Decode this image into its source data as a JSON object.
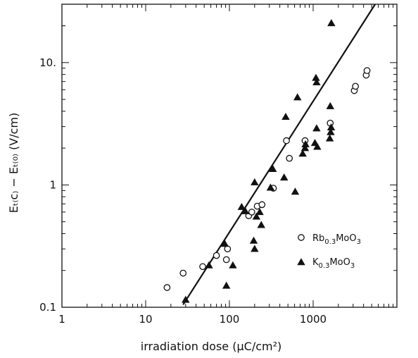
{
  "chart_data": {
    "type": "scatter",
    "xlabel": "irradiation dose (μC/cm²)",
    "ylabel": "Eₜ₍c₎ − Eₜ₍₀₎ (V/cm)",
    "xscale": "log",
    "yscale": "log",
    "xlim": [
      1,
      10000
    ],
    "ylim": [
      0.1,
      30
    ],
    "x_ticks": [
      1,
      10,
      100,
      1000
    ],
    "x_tick_labels": [
      "1",
      "10",
      "100",
      "1000"
    ],
    "y_ticks": [
      0.1,
      1,
      10
    ],
    "y_tick_labels": [
      "0.1",
      "1",
      "10."
    ],
    "grid": false,
    "legend_position": "right",
    "series": [
      {
        "name": "Rb0.3MoO3",
        "name_main": "Rb",
        "name_sub": "0.3",
        "name_rest": "MoO",
        "name_sub2": "3",
        "marker": "open-circle",
        "color": "#111111",
        "points": [
          [
            18,
            0.145
          ],
          [
            28,
            0.19
          ],
          [
            48,
            0.215
          ],
          [
            70,
            0.265
          ],
          [
            92,
            0.245
          ],
          [
            95,
            0.3
          ],
          [
            170,
            0.56
          ],
          [
            185,
            0.6
          ],
          [
            215,
            0.67
          ],
          [
            245,
            0.69
          ],
          [
            335,
            0.94
          ],
          [
            480,
            2.3
          ],
          [
            520,
            1.65
          ],
          [
            800,
            2.3
          ],
          [
            1600,
            3.2
          ],
          [
            3100,
            5.9
          ],
          [
            3200,
            6.4
          ],
          [
            4300,
            7.9
          ],
          [
            4400,
            8.6
          ]
        ]
      },
      {
        "name": "K0.3MoO3",
        "name_main": "K",
        "name_sub": "0.3",
        "name_rest": "MoO",
        "name_sub2": "3",
        "marker": "filled-triangle",
        "color": "#111111",
        "points": [
          [
            30,
            0.115
          ],
          [
            57,
            0.22
          ],
          [
            88,
            0.33
          ],
          [
            92,
            0.15
          ],
          [
            110,
            0.22
          ],
          [
            140,
            0.66
          ],
          [
            155,
            0.61
          ],
          [
            195,
            0.35
          ],
          [
            200,
            0.3
          ],
          [
            200,
            1.05
          ],
          [
            210,
            0.55
          ],
          [
            230,
            0.6
          ],
          [
            240,
            0.47
          ],
          [
            310,
            0.95
          ],
          [
            330,
            1.35
          ],
          [
            450,
            1.15
          ],
          [
            470,
            3.6
          ],
          [
            610,
            0.88
          ],
          [
            650,
            5.2
          ],
          [
            750,
            1.8
          ],
          [
            800,
            2.0
          ],
          [
            810,
            2.15
          ],
          [
            1050,
            2.2
          ],
          [
            1080,
            7.5
          ],
          [
            1100,
            2.9
          ],
          [
            1100,
            6.9
          ],
          [
            1120,
            2.05
          ],
          [
            1580,
            2.4
          ],
          [
            1600,
            4.4
          ],
          [
            1620,
            2.7
          ],
          [
            1640,
            2.95
          ],
          [
            1650,
            21
          ]
        ]
      }
    ],
    "fit_line": [
      [
        28,
        0.105
      ],
      [
        5500,
        30
      ]
    ]
  }
}
